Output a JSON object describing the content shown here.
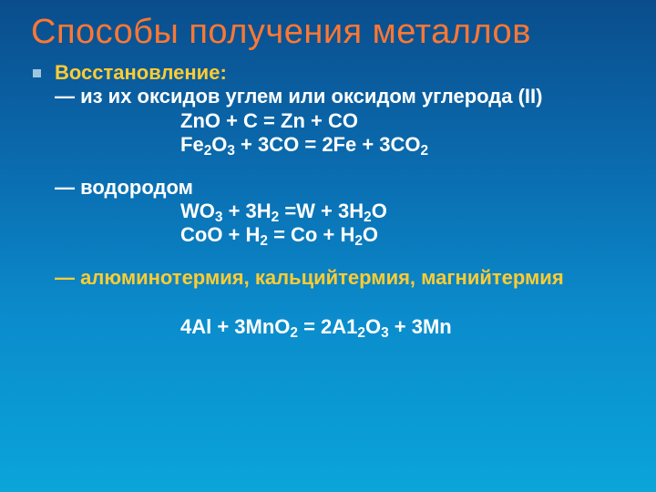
{
  "title": "Способы получения металлов",
  "s1_head": "Восстановление:",
  "s1_dash1": "— из их оксидов углем или оксидом углерода (II)",
  "s1_eq1": "ZnO + C = Zn + CO",
  "s1_eq2_a": "Fe",
  "s1_eq2_b": "2",
  "s1_eq2_c": "O",
  "s1_eq2_d": "3",
  "s1_eq2_e": " + 3CO = 2Fe + 3CO",
  "s1_eq2_f": "2",
  "s2_dash": "— водородом",
  "s2_eq1_a": "WO",
  "s2_eq1_b": "3",
  "s2_eq1_c": " + 3H",
  "s2_eq1_d": "2",
  "s2_eq1_e": " =W + 3H",
  "s2_eq1_f": "2",
  "s2_eq1_g": "O",
  "s2_eq2_a": "CoO + H",
  "s2_eq2_b": "2",
  "s2_eq2_c": " = Co + H",
  "s2_eq2_d": "2",
  "s2_eq2_e": "O",
  "s3_dash": "— алюминотермия, кальцийтермия, магнийтермия",
  "s3_eq_a": "4Al + 3MnO",
  "s3_eq_b": "2",
  "s3_eq_c": " = 2A1",
  "s3_eq_d": "2",
  "s3_eq_e": "O",
  "s3_eq_f": "3",
  "s3_eq_g": " + 3Mn"
}
